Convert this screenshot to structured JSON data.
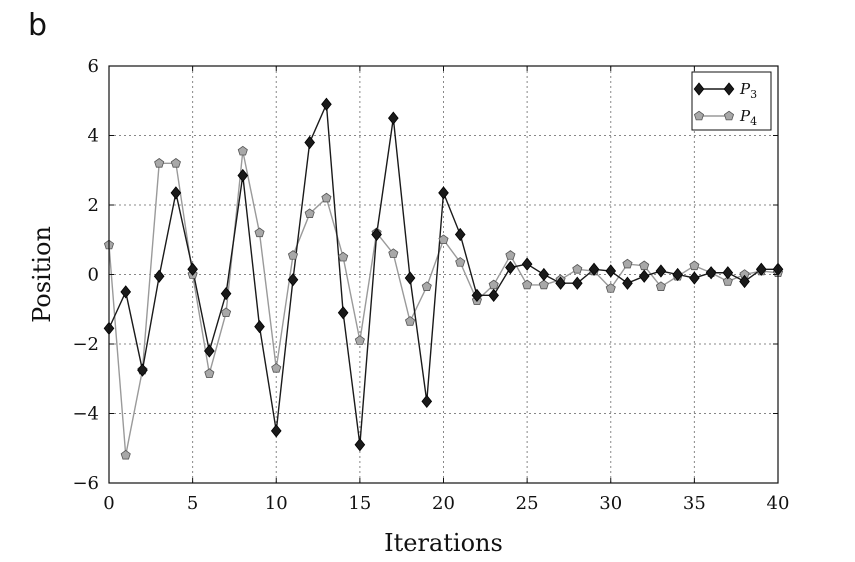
{
  "panel_label": "b",
  "chart_data": {
    "type": "line",
    "xlabel": "Iterations",
    "ylabel": "Position",
    "xlim": [
      0,
      40
    ],
    "ylim": [
      -6,
      6
    ],
    "x_ticks": [
      0,
      5,
      10,
      15,
      20,
      25,
      30,
      35,
      40
    ],
    "y_ticks": [
      -6,
      -4,
      -2,
      0,
      2,
      4,
      6
    ],
    "y_tick_labels": [
      "−6",
      "−4",
      "−2",
      "0",
      "2",
      "4",
      "6"
    ],
    "grid": true,
    "legend_position": "top-right",
    "x": [
      0,
      1,
      2,
      3,
      4,
      5,
      6,
      7,
      8,
      9,
      10,
      11,
      12,
      13,
      14,
      15,
      16,
      17,
      18,
      19,
      20,
      21,
      22,
      23,
      24,
      25,
      26,
      27,
      28,
      29,
      30,
      31,
      32,
      33,
      34,
      35,
      36,
      37,
      38,
      39,
      40
    ],
    "series": [
      {
        "name": "P",
        "subscript": "3",
        "color": "#1a1a1a",
        "marker": "diamond",
        "values": [
          -1.55,
          -0.5,
          -2.75,
          -0.05,
          2.35,
          0.15,
          -2.2,
          -0.55,
          2.85,
          -1.5,
          -4.5,
          -0.15,
          3.8,
          4.9,
          -1.1,
          -4.9,
          1.15,
          4.5,
          -0.1,
          -3.65,
          2.35,
          1.15,
          -0.6,
          -0.6,
          0.2,
          0.3,
          0.0,
          -0.25,
          -0.25,
          0.15,
          0.1,
          -0.25,
          -0.05,
          0.1,
          0.0,
          -0.1,
          0.05,
          0.05,
          -0.2,
          0.15,
          0.15
        ]
      },
      {
        "name": "P",
        "subscript": "4",
        "color": "#9a9a9a",
        "marker": "pentagon",
        "values": [
          0.85,
          -5.2,
          -2.75,
          3.2,
          3.2,
          0.0,
          -2.85,
          -1.1,
          3.55,
          1.2,
          -2.7,
          0.55,
          1.75,
          2.2,
          0.5,
          -1.9,
          1.2,
          0.6,
          -1.35,
          -0.35,
          1.0,
          0.35,
          -0.75,
          -0.3,
          0.55,
          -0.3,
          -0.3,
          -0.15,
          0.15,
          0.1,
          -0.4,
          0.3,
          0.25,
          -0.35,
          -0.05,
          0.25,
          0.05,
          -0.2,
          0.0,
          0.1,
          0.05
        ]
      }
    ]
  }
}
